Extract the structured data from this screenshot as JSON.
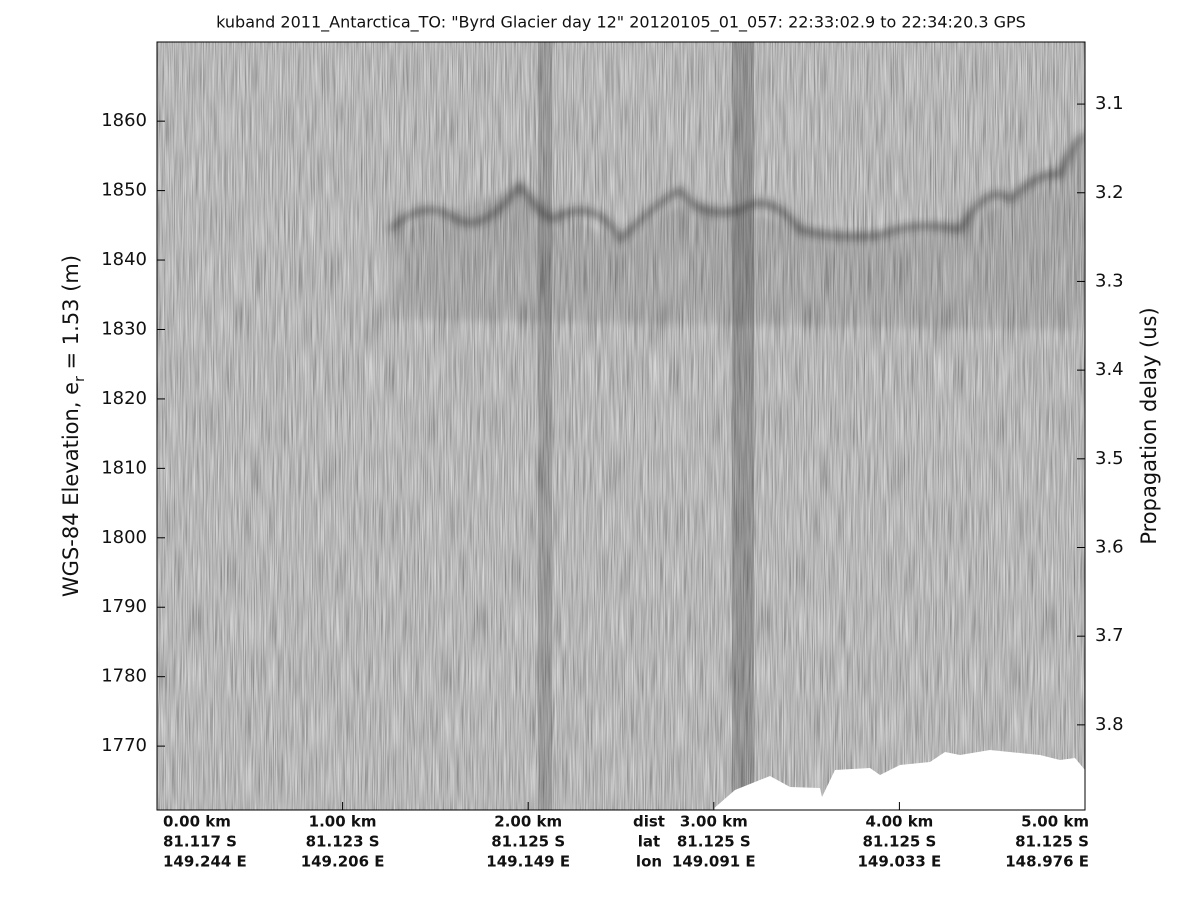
{
  "chart_data": {
    "type": "echogram",
    "title": "kuband 2011_Antarctica_TO: \"Byrd Glacier day 12\"  20120105_01_057: 22:33:02.9 to 22:34:20.3 GPS",
    "ylabel": {
      "text": "WGS-84 Elevation, e",
      "subscript": "r",
      "suffix": " = 1.53 (m)"
    },
    "y2label": "Propagation delay (us)",
    "xlim": [
      0,
      5.0
    ],
    "xticks": [
      {
        "value": 0,
        "label": "0.00 km"
      },
      {
        "value": 1,
        "label": "1.00 km"
      },
      {
        "value": 2,
        "label": "2.00 km"
      },
      {
        "value": 3,
        "label": "3.00 km"
      },
      {
        "value": 4,
        "label": "4.00 km"
      },
      {
        "value": 5,
        "label": "5.00 km"
      }
    ],
    "xtick_lat": [
      "81.117 S",
      "81.123 S",
      "81.125 S",
      "81.125 S",
      "81.125 S",
      "81.125 S"
    ],
    "xtick_lon": [
      "149.244 E",
      "149.206 E",
      "149.149 E",
      "149.091 E",
      "149.033 E",
      "148.976 E"
    ],
    "xtick_row_names": [
      "dist",
      "lat",
      "lon"
    ],
    "ylim": [
      1760.8,
      1871.4
    ],
    "yticks": [
      1770,
      1780,
      1790,
      1800,
      1810,
      1820,
      1830,
      1840,
      1850,
      1860
    ],
    "y2lim": [
      3.896,
      3.03
    ],
    "y2ticks": [
      3.1,
      3.2,
      3.3,
      3.4,
      3.5,
      3.6,
      3.7,
      3.8
    ]
  }
}
